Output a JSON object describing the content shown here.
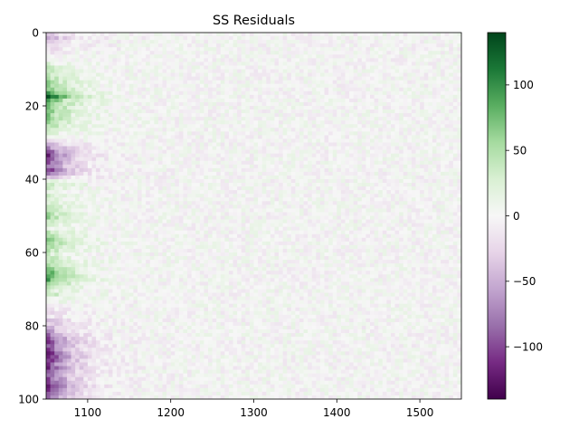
{
  "chart_data": {
    "type": "heatmap",
    "title": "SS Residuals",
    "xlabel": "",
    "ylabel": "",
    "xlim": [
      1050,
      1550
    ],
    "ylim": [
      100,
      0
    ],
    "x_ticks": [
      1100,
      1200,
      1300,
      1400,
      1500
    ],
    "y_ticks": [
      0,
      20,
      40,
      60,
      80,
      100
    ],
    "colormap": "PRGn",
    "color_min": -140,
    "color_max": 140,
    "colorbar_ticks": [
      100,
      50,
      0,
      -50,
      -100
    ],
    "colorbar_tick_labels": [
      "100",
      "50",
      "0",
      "−50",
      "−100"
    ],
    "grid": false,
    "row_offsets_left": [
      -40,
      -55,
      -35,
      -30,
      -20,
      -10,
      -5,
      10,
      20,
      30,
      40,
      45,
      50,
      55,
      60,
      70,
      95,
      140,
      90,
      80,
      75,
      70,
      65,
      60,
      55,
      50,
      40,
      20,
      5,
      -20,
      -50,
      -70,
      -95,
      -110,
      -100,
      -90,
      -85,
      -110,
      -80,
      -40,
      10,
      40,
      30,
      20,
      35,
      20,
      30,
      40,
      45,
      50,
      55,
      45,
      30,
      20,
      40,
      55,
      60,
      65,
      55,
      45,
      30,
      40,
      50,
      60,
      70,
      85,
      95,
      90,
      70,
      50,
      30,
      40,
      20,
      10,
      -10,
      -20,
      -30,
      -20,
      -35,
      -40,
      -50,
      -60,
      -80,
      -100,
      -110,
      -95,
      -105,
      -120,
      -125,
      -115,
      -100,
      -110,
      -95,
      -85,
      -100,
      -110,
      -120,
      -115,
      -100,
      -80
    ],
    "colors": {
      "low": "#40004b",
      "mid": "#f7f7f7",
      "high": "#00441b"
    }
  }
}
